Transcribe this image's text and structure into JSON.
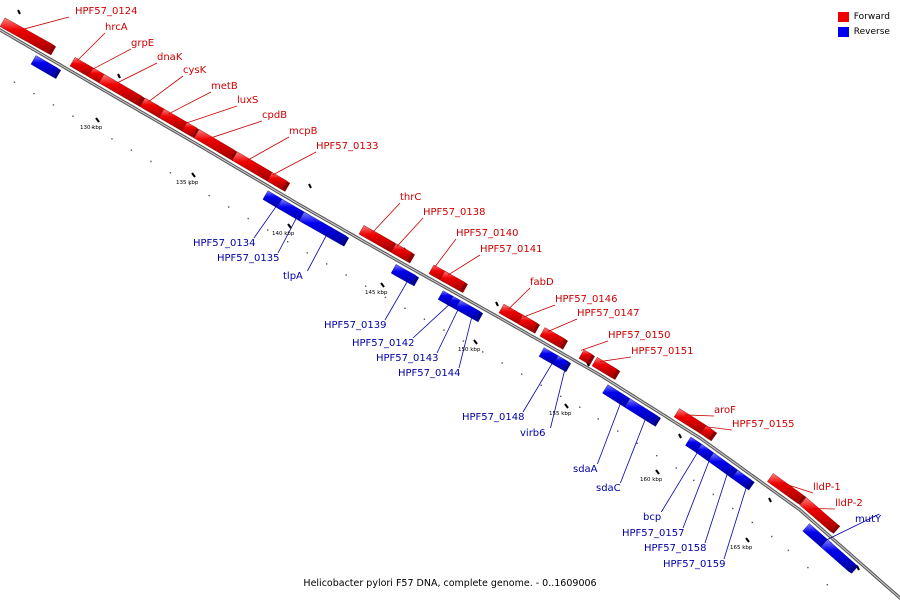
{
  "colors": {
    "forward": "#ee0000",
    "reverse": "#0000ee",
    "backbone": "#888888",
    "label_forward": "#cc0000",
    "label_reverse": "#0000aa"
  },
  "legend": [
    {
      "label": "Forward",
      "color": "#ee0000"
    },
    {
      "label": "Reverse",
      "color": "#0000ee"
    }
  ],
  "caption": "Helicobacter pylori F57 DNA, complete genome. - 0..1609006",
  "scale": {
    "unit": "kbp",
    "ticks": [
      "130 kbp",
      "135 kbp",
      "140 kbp",
      "145 kbp",
      "150 kbp",
      "155 kbp",
      "160 kbp",
      "165 kbp"
    ]
  },
  "genes": {
    "forward": [
      "HPF57_0124",
      "hrcA",
      "grpE",
      "dnaK",
      "cysK",
      "metB",
      "luxS",
      "cpdB",
      "mcpB",
      "HPF57_0133",
      "thrC",
      "HPF57_0138",
      "HPF57_0140",
      "HPF57_0141",
      "fabD",
      "HPF57_0146",
      "HPF57_0147",
      "HPF57_0150",
      "HPF57_0151",
      "aroF",
      "HPF57_0155",
      "lldP-1",
      "lldP-2"
    ],
    "reverse": [
      "HPF57_0134",
      "HPF57_0135",
      "tlpA",
      "HPF57_0139",
      "HPF57_0142",
      "HPF57_0143",
      "HPF57_0144",
      "HPF57_0148",
      "virb6",
      "sdaA",
      "sdaC",
      "bcp",
      "HPF57_0157",
      "HPF57_0158",
      "HPF57_0159",
      "mutY"
    ]
  }
}
